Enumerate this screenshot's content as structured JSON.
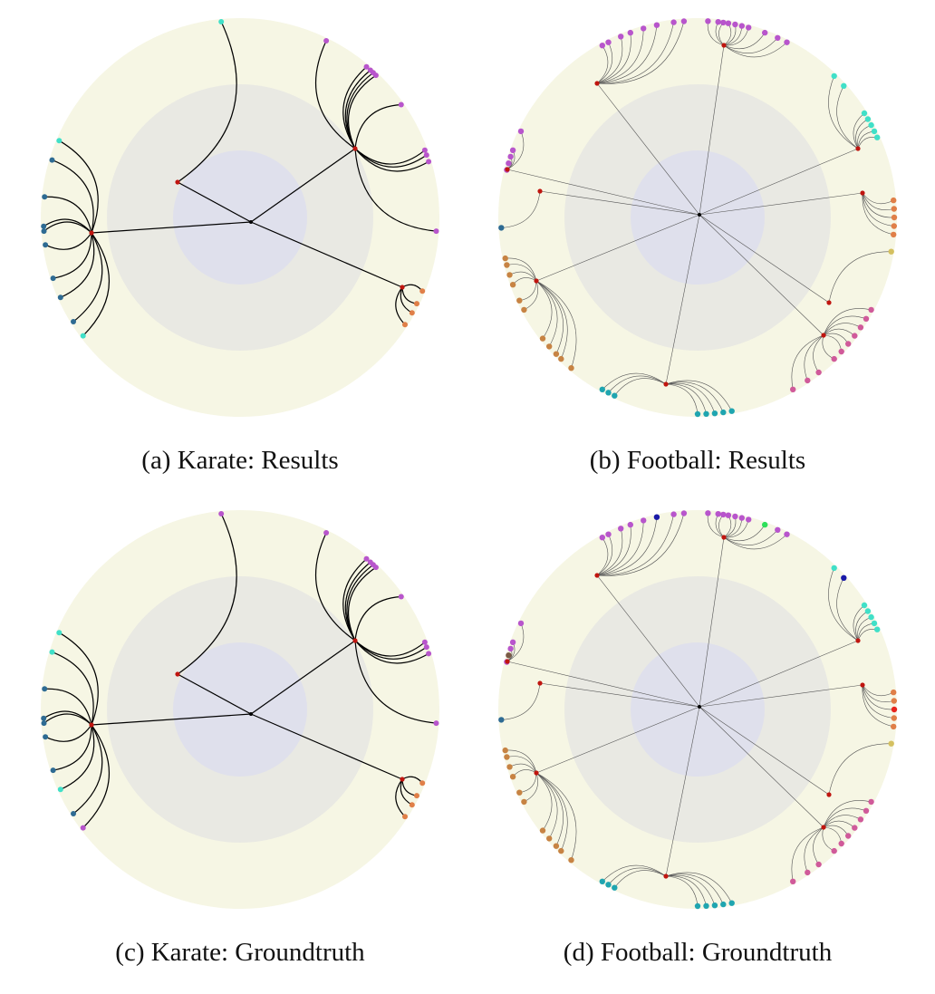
{
  "figure": {
    "panels": [
      {
        "id": "a",
        "caption": "(a)  Karate: Results",
        "dataset": "Karate",
        "variant": "Results",
        "leaves": [
          {
            "hub": 1,
            "angle": -95.5,
            "color": "#40e0c8"
          },
          {
            "hub": 0,
            "angle": -64,
            "color": "#b855cc"
          },
          {
            "hub": 0,
            "angle": -50,
            "color": "#b855cc"
          },
          {
            "hub": 0,
            "angle": -48.5,
            "color": "#b855cc"
          },
          {
            "hub": 0,
            "angle": -47.4,
            "color": "#b855cc"
          },
          {
            "hub": 0,
            "angle": -46.3,
            "color": "#b855cc"
          },
          {
            "hub": 0,
            "angle": -35,
            "color": "#b855cc"
          },
          {
            "hub": 0,
            "angle": -20,
            "color": "#b855cc"
          },
          {
            "hub": 0,
            "angle": -18.5,
            "color": "#b855cc"
          },
          {
            "hub": 0,
            "angle": -16.5,
            "color": "#b855cc"
          },
          {
            "hub": 0,
            "angle": 4,
            "color": "#b855cc"
          },
          {
            "hub": 3,
            "angle": 22,
            "color": "#e07f48"
          },
          {
            "hub": 3,
            "angle": 26,
            "color": "#e07f48"
          },
          {
            "hub": 3,
            "angle": 29,
            "color": "#e07f48"
          },
          {
            "hub": 3,
            "angle": 33,
            "color": "#e07f48"
          },
          {
            "hub": 2,
            "angle": 143,
            "color": "#40e0c8"
          },
          {
            "hub": 2,
            "angle": 148,
            "color": "#2e6b93"
          },
          {
            "hub": 2,
            "angle": 156,
            "color": "#2e6b93"
          },
          {
            "hub": 2,
            "angle": 162,
            "color": "#2e6b93"
          },
          {
            "hub": 2,
            "angle": 172,
            "color": "#2e6b93"
          },
          {
            "hub": 2,
            "angle": 176,
            "color": "#2e6b93"
          },
          {
            "hub": 2,
            "angle": 177.4,
            "color": "#2e6b93"
          },
          {
            "hub": 2,
            "angle": 186,
            "color": "#2e6b93"
          },
          {
            "hub": 2,
            "angle": 197,
            "color": "#2e6b93"
          },
          {
            "hub": 2,
            "angle": 203,
            "color": "#40e0c8"
          }
        ]
      },
      {
        "id": "b",
        "caption": "(b)  Football: Results",
        "dataset": "Football",
        "variant": "Results",
        "leaves": [
          {
            "hub": 0,
            "angle": -119,
            "color": "#b855cc"
          },
          {
            "hub": 0,
            "angle": -117,
            "color": "#b855cc"
          },
          {
            "hub": 0,
            "angle": -113,
            "color": "#b855cc"
          },
          {
            "hub": 0,
            "angle": -110,
            "color": "#b855cc"
          },
          {
            "hub": 0,
            "angle": -106,
            "color": "#b855cc"
          },
          {
            "hub": 0,
            "angle": -102,
            "color": "#b855cc"
          },
          {
            "hub": 0,
            "angle": -97,
            "color": "#b855cc"
          },
          {
            "hub": 0,
            "angle": -94,
            "color": "#b855cc"
          },
          {
            "hub": 1,
            "angle": -87,
            "color": "#b855cc"
          },
          {
            "hub": 1,
            "angle": -84,
            "color": "#b855cc"
          },
          {
            "hub": 1,
            "angle": -82.5,
            "color": "#b855cc"
          },
          {
            "hub": 1,
            "angle": -81,
            "color": "#b855cc"
          },
          {
            "hub": 1,
            "angle": -79,
            "color": "#b855cc"
          },
          {
            "hub": 1,
            "angle": -77,
            "color": "#b855cc"
          },
          {
            "hub": 1,
            "angle": -75,
            "color": "#b855cc"
          },
          {
            "hub": 1,
            "angle": -70,
            "color": "#b855cc"
          },
          {
            "hub": 1,
            "angle": -66,
            "color": "#b855cc"
          },
          {
            "hub": 1,
            "angle": -63,
            "color": "#b855cc"
          },
          {
            "hub": 2,
            "angle": -46,
            "color": "#40e0c8"
          },
          {
            "hub": 2,
            "angle": -42,
            "color": "#40e0c8"
          },
          {
            "hub": 2,
            "angle": -32,
            "color": "#40e0c8"
          },
          {
            "hub": 2,
            "angle": -30,
            "color": "#40e0c8"
          },
          {
            "hub": 2,
            "angle": -28,
            "color": "#40e0c8"
          },
          {
            "hub": 2,
            "angle": -26,
            "color": "#40e0c8"
          },
          {
            "hub": 2,
            "angle": -24,
            "color": "#40e0c8"
          },
          {
            "hub": 3,
            "angle": -5,
            "color": "#e07f48"
          },
          {
            "hub": 3,
            "angle": -2.5,
            "color": "#e07f48"
          },
          {
            "hub": 3,
            "angle": 0,
            "color": "#e07f48"
          },
          {
            "hub": 3,
            "angle": 2.5,
            "color": "#e07f48"
          },
          {
            "hub": 3,
            "angle": 5,
            "color": "#e07f48"
          },
          {
            "hub": 4,
            "angle": 10,
            "color": "#d4c060"
          },
          {
            "hub": 5,
            "angle": 28,
            "color": "#d05a9a"
          },
          {
            "hub": 5,
            "angle": 31,
            "color": "#d05a9a"
          },
          {
            "hub": 5,
            "angle": 34,
            "color": "#d05a9a"
          },
          {
            "hub": 5,
            "angle": 37,
            "color": "#d05a9a"
          },
          {
            "hub": 5,
            "angle": 40,
            "color": "#d05a9a"
          },
          {
            "hub": 5,
            "angle": 43,
            "color": "#d05a9a"
          },
          {
            "hub": 5,
            "angle": 46,
            "color": "#d05a9a"
          },
          {
            "hub": 5,
            "angle": 52,
            "color": "#d05a9a"
          },
          {
            "hub": 5,
            "angle": 56,
            "color": "#d05a9a"
          },
          {
            "hub": 5,
            "angle": 61,
            "color": "#d05a9a"
          },
          {
            "hub": 6,
            "angle": 80,
            "color": "#1fa5b0"
          },
          {
            "hub": 6,
            "angle": 82.5,
            "color": "#1fa5b0"
          },
          {
            "hub": 6,
            "angle": 85,
            "color": "#1fa5b0"
          },
          {
            "hub": 6,
            "angle": 87.5,
            "color": "#1fa5b0"
          },
          {
            "hub": 6,
            "angle": 90,
            "color": "#1fa5b0"
          },
          {
            "hub": 6,
            "angle": 115,
            "color": "#1fa5b0"
          },
          {
            "hub": 6,
            "angle": 117,
            "color": "#1fa5b0"
          },
          {
            "hub": 6,
            "angle": 119,
            "color": "#1fa5b0"
          },
          {
            "hub": 7,
            "angle": 130,
            "color": "#c78343"
          },
          {
            "hub": 7,
            "angle": 134,
            "color": "#c78343"
          },
          {
            "hub": 7,
            "angle": 136,
            "color": "#c78343"
          },
          {
            "hub": 7,
            "angle": 139,
            "color": "#c78343"
          },
          {
            "hub": 7,
            "angle": 142,
            "color": "#c78343"
          },
          {
            "hub": 7,
            "angle": 152,
            "color": "#c78343"
          },
          {
            "hub": 7,
            "angle": 155,
            "color": "#c78343"
          },
          {
            "hub": 7,
            "angle": 160,
            "color": "#c78343"
          },
          {
            "hub": 7,
            "angle": 163,
            "color": "#c78343"
          },
          {
            "hub": 7,
            "angle": 166,
            "color": "#c78343"
          },
          {
            "hub": 7,
            "angle": 168,
            "color": "#c78343"
          },
          {
            "hub": 8,
            "angle": 177,
            "color": "#2e6b93"
          },
          {
            "hub": 9,
            "angle": 194,
            "color": "#b855cc"
          },
          {
            "hub": 9,
            "angle": 196,
            "color": "#b855cc"
          },
          {
            "hub": 9,
            "angle": 198,
            "color": "#b855cc"
          },
          {
            "hub": 9,
            "angle": 200,
            "color": "#b855cc"
          },
          {
            "hub": 9,
            "angle": 206,
            "color": "#b855cc"
          }
        ]
      },
      {
        "id": "c",
        "caption": "(c)  Karate: Groundtruth",
        "dataset": "Karate",
        "variant": "Groundtruth",
        "leaves": [
          {
            "hub": 1,
            "angle": -95.5,
            "color": "#b855cc"
          },
          {
            "hub": 0,
            "angle": -64,
            "color": "#b855cc"
          },
          {
            "hub": 0,
            "angle": -50,
            "color": "#b855cc"
          },
          {
            "hub": 0,
            "angle": -48.5,
            "color": "#b855cc"
          },
          {
            "hub": 0,
            "angle": -47.4,
            "color": "#b855cc"
          },
          {
            "hub": 0,
            "angle": -46.3,
            "color": "#b855cc"
          },
          {
            "hub": 0,
            "angle": -35,
            "color": "#b855cc"
          },
          {
            "hub": 0,
            "angle": -20,
            "color": "#b855cc"
          },
          {
            "hub": 0,
            "angle": -18.5,
            "color": "#b855cc"
          },
          {
            "hub": 0,
            "angle": -16.5,
            "color": "#b855cc"
          },
          {
            "hub": 0,
            "angle": 4,
            "color": "#b855cc"
          },
          {
            "hub": 3,
            "angle": 22,
            "color": "#e07f48"
          },
          {
            "hub": 3,
            "angle": 26,
            "color": "#e07f48"
          },
          {
            "hub": 3,
            "angle": 29,
            "color": "#e07f48"
          },
          {
            "hub": 3,
            "angle": 33,
            "color": "#e07f48"
          },
          {
            "hub": 2,
            "angle": 143,
            "color": "#b855cc"
          },
          {
            "hub": 2,
            "angle": 148,
            "color": "#2e6b93"
          },
          {
            "hub": 2,
            "angle": 156,
            "color": "#40e0c8"
          },
          {
            "hub": 2,
            "angle": 162,
            "color": "#2e6b93"
          },
          {
            "hub": 2,
            "angle": 172,
            "color": "#2e6b93"
          },
          {
            "hub": 2,
            "angle": 176,
            "color": "#2e6b93"
          },
          {
            "hub": 2,
            "angle": 177.4,
            "color": "#2e6b93"
          },
          {
            "hub": 2,
            "angle": 186,
            "color": "#2e6b93"
          },
          {
            "hub": 2,
            "angle": 197,
            "color": "#40e0c8"
          },
          {
            "hub": 2,
            "angle": 203,
            "color": "#40e0c8"
          }
        ]
      },
      {
        "id": "d",
        "caption": "(d)  Football: Groundtruth",
        "dataset": "Football",
        "variant": "Groundtruth",
        "leaves": [
          {
            "hub": 0,
            "angle": -119,
            "color": "#b855cc"
          },
          {
            "hub": 0,
            "angle": -117,
            "color": "#b855cc"
          },
          {
            "hub": 0,
            "angle": -113,
            "color": "#b855cc"
          },
          {
            "hub": 0,
            "angle": -110,
            "color": "#b855cc"
          },
          {
            "hub": 0,
            "angle": -106,
            "color": "#b855cc"
          },
          {
            "hub": 0,
            "angle": -102,
            "color": "#1a1aa8"
          },
          {
            "hub": 0,
            "angle": -97,
            "color": "#b855cc"
          },
          {
            "hub": 0,
            "angle": -94,
            "color": "#b855cc"
          },
          {
            "hub": 1,
            "angle": -87,
            "color": "#b855cc"
          },
          {
            "hub": 1,
            "angle": -84,
            "color": "#b855cc"
          },
          {
            "hub": 1,
            "angle": -82.5,
            "color": "#b855cc"
          },
          {
            "hub": 1,
            "angle": -81,
            "color": "#b855cc"
          },
          {
            "hub": 1,
            "angle": -79,
            "color": "#b855cc"
          },
          {
            "hub": 1,
            "angle": -77,
            "color": "#b855cc"
          },
          {
            "hub": 1,
            "angle": -75,
            "color": "#b855cc"
          },
          {
            "hub": 1,
            "angle": -70,
            "color": "#2ee05a"
          },
          {
            "hub": 1,
            "angle": -66,
            "color": "#b855cc"
          },
          {
            "hub": 1,
            "angle": -63,
            "color": "#b855cc"
          },
          {
            "hub": 2,
            "angle": -46,
            "color": "#40e0c8"
          },
          {
            "hub": 2,
            "angle": -42,
            "color": "#1a1aa8"
          },
          {
            "hub": 2,
            "angle": -32,
            "color": "#40e0c8"
          },
          {
            "hub": 2,
            "angle": -30,
            "color": "#40e0c8"
          },
          {
            "hub": 2,
            "angle": -28,
            "color": "#40e0c8"
          },
          {
            "hub": 2,
            "angle": -26,
            "color": "#40e0c8"
          },
          {
            "hub": 2,
            "angle": -24,
            "color": "#40e0c8"
          },
          {
            "hub": 3,
            "angle": -5,
            "color": "#e07f48"
          },
          {
            "hub": 3,
            "angle": -2.5,
            "color": "#e07f48"
          },
          {
            "hub": 3,
            "angle": 0,
            "color": "#e8241c"
          },
          {
            "hub": 3,
            "angle": 2.5,
            "color": "#e07f48"
          },
          {
            "hub": 3,
            "angle": 5,
            "color": "#e07f48"
          },
          {
            "hub": 4,
            "angle": 10,
            "color": "#d4c060"
          },
          {
            "hub": 5,
            "angle": 28,
            "color": "#d05a9a"
          },
          {
            "hub": 5,
            "angle": 31,
            "color": "#d05a9a"
          },
          {
            "hub": 5,
            "angle": 34,
            "color": "#d05a9a"
          },
          {
            "hub": 5,
            "angle": 37,
            "color": "#d05a9a"
          },
          {
            "hub": 5,
            "angle": 40,
            "color": "#d05a9a"
          },
          {
            "hub": 5,
            "angle": 43,
            "color": "#d05a9a"
          },
          {
            "hub": 5,
            "angle": 46,
            "color": "#d05a9a"
          },
          {
            "hub": 5,
            "angle": 52,
            "color": "#d05a9a"
          },
          {
            "hub": 5,
            "angle": 56,
            "color": "#d05a9a"
          },
          {
            "hub": 5,
            "angle": 61,
            "color": "#d05a9a"
          },
          {
            "hub": 6,
            "angle": 80,
            "color": "#1fa5b0"
          },
          {
            "hub": 6,
            "angle": 82.5,
            "color": "#1fa5b0"
          },
          {
            "hub": 6,
            "angle": 85,
            "color": "#1fa5b0"
          },
          {
            "hub": 6,
            "angle": 87.5,
            "color": "#1fa5b0"
          },
          {
            "hub": 6,
            "angle": 90,
            "color": "#1fa5b0"
          },
          {
            "hub": 6,
            "angle": 115,
            "color": "#1fa5b0"
          },
          {
            "hub": 6,
            "angle": 117,
            "color": "#1fa5b0"
          },
          {
            "hub": 6,
            "angle": 119,
            "color": "#1fa5b0"
          },
          {
            "hub": 7,
            "angle": 130,
            "color": "#c78343"
          },
          {
            "hub": 7,
            "angle": 134,
            "color": "#c78343"
          },
          {
            "hub": 7,
            "angle": 136,
            "color": "#c78343"
          },
          {
            "hub": 7,
            "angle": 139,
            "color": "#c78343"
          },
          {
            "hub": 7,
            "angle": 142,
            "color": "#c78343"
          },
          {
            "hub": 7,
            "angle": 152,
            "color": "#c78343"
          },
          {
            "hub": 7,
            "angle": 155,
            "color": "#c78343"
          },
          {
            "hub": 7,
            "angle": 160,
            "color": "#c78343"
          },
          {
            "hub": 7,
            "angle": 163,
            "color": "#c78343"
          },
          {
            "hub": 7,
            "angle": 166,
            "color": "#c78343"
          },
          {
            "hub": 7,
            "angle": 168,
            "color": "#c78343"
          },
          {
            "hub": 8,
            "angle": 177,
            "color": "#2e6b93"
          },
          {
            "hub": 9,
            "angle": 194,
            "color": "#b855cc"
          },
          {
            "hub": 9,
            "angle": 196,
            "color": "#7a5a45"
          },
          {
            "hub": 9,
            "angle": 198,
            "color": "#b855cc"
          },
          {
            "hub": 9,
            "angle": 200,
            "color": "#b855cc"
          },
          {
            "hub": 9,
            "angle": 206,
            "color": "#b855cc"
          }
        ]
      }
    ],
    "colors": {
      "outer_disk": "#f6f6e4",
      "middle_disk": "#e9e9e3",
      "inner_disk": "#dfe0ec",
      "hub_node": "#c0150f",
      "root_node": "#000000",
      "karate_edge": "#000000",
      "football_edge": "#555555"
    }
  }
}
